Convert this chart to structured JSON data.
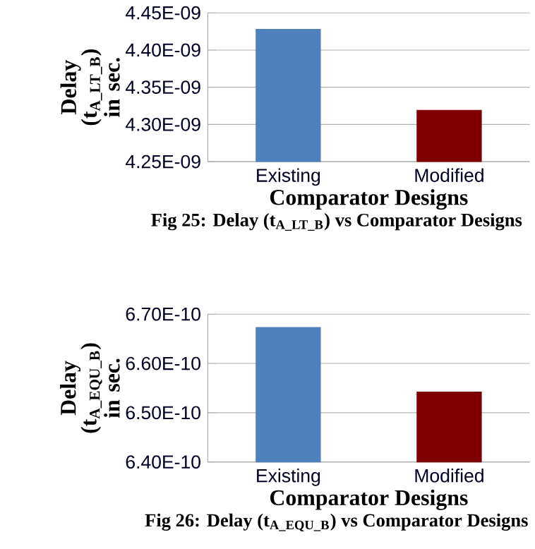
{
  "chart_data": [
    {
      "type": "bar",
      "title": "Fig 25: Delay (t$_{A_LT_B}$) vs Comparator Designs",
      "xlabel": "Comparator Designs",
      "ylabel": "Delay (t$_{A_LT_B}$) in sec.",
      "categories": [
        "Existing",
        "Modified"
      ],
      "values": [
        4.428e-09,
        4.319e-09
      ],
      "colors": [
        "#4f81bd",
        "#7f0000"
      ],
      "ylim": [
        4.25e-09,
        4.45e-09
      ],
      "yticks": [
        {
          "value": 4.25e-09,
          "label": "4.25E-09"
        },
        {
          "value": 4.3e-09,
          "label": "4.30E-09"
        },
        {
          "value": 4.35e-09,
          "label": "4.35E-09"
        },
        {
          "value": 4.4e-09,
          "label": "4.40E-09"
        },
        {
          "value": 4.45e-09,
          "label": "4.45E-09"
        }
      ],
      "grid": "y"
    },
    {
      "type": "bar",
      "title": "Fig 26: Delay (t$_{A_EQU_B}$) vs Comparator Designs",
      "xlabel": "Comparator Designs",
      "ylabel": "Delay (t$_{A_EQU_B}$) in sec.",
      "categories": [
        "Existing",
        "Modified"
      ],
      "values": [
        6.673e-10,
        6.542e-10
      ],
      "colors": [
        "#4f81bd",
        "#7f0000"
      ],
      "ylim": [
        6.4e-10,
        6.7e-10
      ],
      "yticks": [
        {
          "value": 6.4e-10,
          "label": "6.40E-10"
        },
        {
          "value": 6.5e-10,
          "label": "6.50E-10"
        },
        {
          "value": 6.6e-10,
          "label": "6.60E-10"
        },
        {
          "value": 6.7e-10,
          "label": "6.70E-10"
        }
      ],
      "grid": "y"
    }
  ]
}
